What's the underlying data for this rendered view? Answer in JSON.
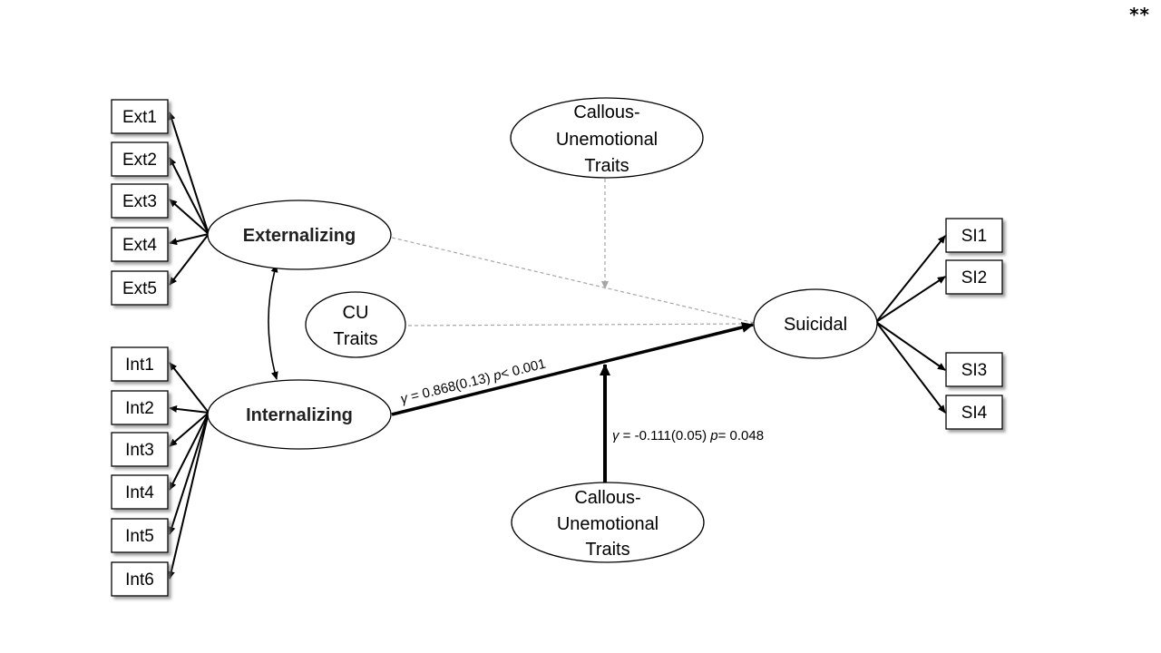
{
  "corner_mark": "**",
  "indicators": {
    "externalizing": [
      "Ext1",
      "Ext2",
      "Ext3",
      "Ext4",
      "Ext5"
    ],
    "internalizing": [
      "Int1",
      "Int2",
      "Int3",
      "Int4",
      "Int5",
      "Int6"
    ],
    "suicidal": [
      "SI1",
      "SI2",
      "SI3",
      "SI4"
    ]
  },
  "latents": {
    "externalizing": "Externalizing",
    "internalizing": "Internalizing",
    "suicidal": "Suicidal",
    "cu_traits": [
      "CU",
      "Traits"
    ],
    "cu_moderator_top": [
      "Callous-",
      "Unemotional",
      "Traits"
    ],
    "cu_moderator_bottom": [
      "Callous-",
      "Unemotional",
      "Traits"
    ]
  },
  "paths": {
    "internalizing_to_suicidal": {
      "symbol": "γ",
      "eq": " = 0.868(0.13) ",
      "p_symbol": "p",
      "p_value": "< 0.001"
    },
    "moderation": {
      "symbol": "γ",
      "eq": " = -0.111(0.05) ",
      "p_symbol": "p",
      "p_value": "= 0.048"
    }
  },
  "colors": {
    "line": "#000000",
    "dashed_line": "#a6a6a6",
    "box_fill": "#ffffff",
    "shadow": "#7f7f7f"
  }
}
